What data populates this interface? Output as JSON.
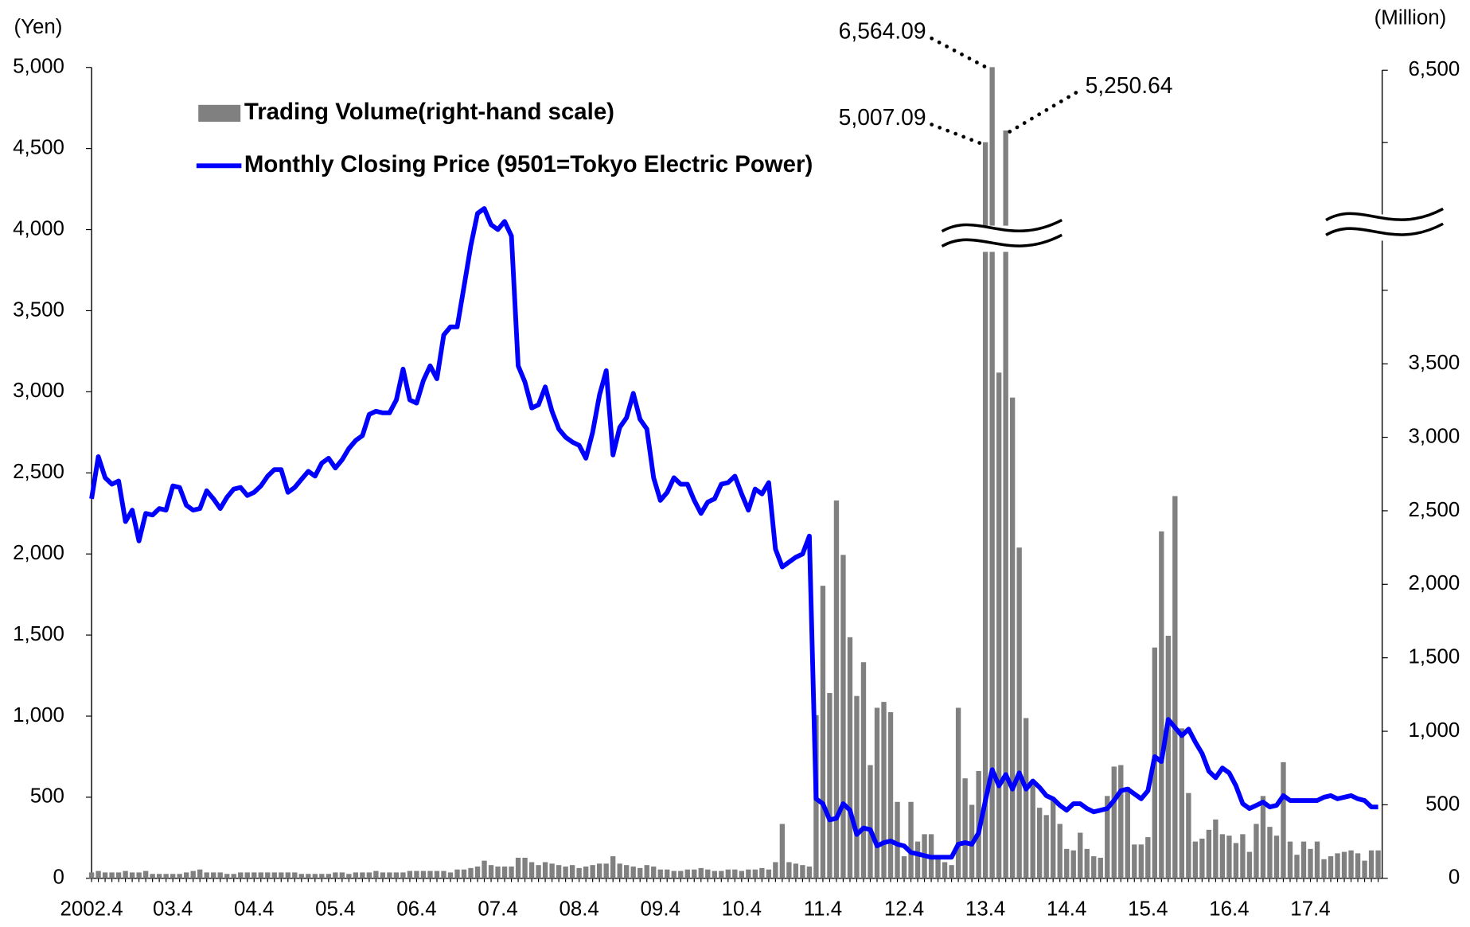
{
  "chart_data": {
    "type": "combo",
    "y_label": "(Yen)",
    "y2_label": "(Million)",
    "categories": [
      "2002.4",
      null,
      null,
      null,
      null,
      null,
      null,
      null,
      null,
      null,
      null,
      null,
      "03.4",
      null,
      null,
      null,
      null,
      null,
      null,
      null,
      null,
      null,
      null,
      null,
      "04.4",
      null,
      null,
      null,
      null,
      null,
      null,
      null,
      null,
      null,
      null,
      null,
      "05.4",
      null,
      null,
      null,
      null,
      null,
      null,
      null,
      null,
      null,
      null,
      null,
      "06.4",
      null,
      null,
      null,
      null,
      null,
      null,
      null,
      null,
      null,
      null,
      null,
      "07.4",
      null,
      null,
      null,
      null,
      null,
      null,
      null,
      null,
      null,
      null,
      null,
      "08.4",
      null,
      null,
      null,
      null,
      null,
      null,
      null,
      null,
      null,
      null,
      null,
      "09.4",
      null,
      null,
      null,
      null,
      null,
      null,
      null,
      null,
      null,
      null,
      null,
      "10.4",
      null,
      null,
      null,
      null,
      null,
      null,
      null,
      null,
      null,
      null,
      null,
      "11.4",
      null,
      null,
      null,
      null,
      null,
      null,
      null,
      null,
      null,
      null,
      null,
      "12.4",
      null,
      null,
      null,
      null,
      null,
      null,
      null,
      null,
      null,
      null,
      null,
      "13.4",
      null,
      null,
      null,
      null,
      null,
      null,
      null,
      null,
      null,
      null,
      null,
      "14.4",
      null,
      null,
      null,
      null,
      null,
      null,
      null,
      null,
      null,
      null,
      null,
      "15.4",
      null,
      null,
      null,
      null,
      null,
      null,
      null,
      null,
      null,
      null,
      null,
      "16.4",
      null,
      null,
      null,
      null,
      null,
      null,
      null,
      null,
      null,
      null,
      null,
      "17.4",
      null,
      null,
      null,
      null,
      null,
      null,
      null,
      null,
      null,
      null
    ],
    "series": [
      {
        "name": "Trading Volume(right-hand scale)",
        "type": "bar",
        "axis": "y2",
        "color": "#808080",
        "values": [
          40,
          50,
          40,
          40,
          40,
          50,
          40,
          40,
          50,
          30,
          30,
          30,
          30,
          30,
          40,
          50,
          60,
          40,
          40,
          40,
          30,
          30,
          40,
          40,
          40,
          40,
          40,
          40,
          40,
          40,
          40,
          30,
          30,
          30,
          30,
          30,
          40,
          40,
          30,
          40,
          40,
          40,
          50,
          40,
          40,
          40,
          40,
          50,
          50,
          50,
          50,
          50,
          50,
          40,
          60,
          60,
          70,
          80,
          120,
          90,
          80,
          80,
          80,
          140,
          140,
          110,
          90,
          110,
          100,
          90,
          80,
          90,
          70,
          80,
          90,
          100,
          100,
          150,
          100,
          90,
          80,
          70,
          90,
          80,
          60,
          60,
          50,
          50,
          60,
          60,
          70,
          60,
          50,
          50,
          60,
          60,
          50,
          60,
          60,
          70,
          60,
          110,
          370,
          110,
          100,
          90,
          80,
          1110,
          1990,
          1260,
          2570,
          2200,
          1640,
          1240,
          1470,
          770,
          1160,
          1200,
          1130,
          520,
          150,
          520,
          250,
          300,
          300,
          130,
          110,
          90,
          1160,
          680,
          500,
          730,
          5007.09,
          6564.09,
          3440,
          5250.64,
          3270,
          2250,
          1090,
          670,
          480,
          430,
          550,
          370,
          200,
          190,
          310,
          200,
          150,
          140,
          560,
          760,
          770,
          620,
          230,
          230,
          280,
          1570,
          2360,
          1650,
          2600,
          1020,
          580,
          250,
          270,
          330,
          400,
          300,
          290,
          240,
          300,
          180,
          370,
          560,
          350,
          290,
          790,
          250,
          160,
          250,
          200,
          250,
          130,
          150,
          170,
          180,
          190,
          170,
          120,
          190,
          190
        ],
        "value_labels": [
          null,
          null,
          null,
          null,
          null,
          null,
          null,
          null,
          null,
          null,
          null,
          null,
          null,
          null,
          null,
          null,
          null,
          null,
          null,
          null,
          null,
          null,
          null,
          null,
          null,
          null,
          null,
          null,
          null,
          null,
          null,
          null,
          null,
          null,
          null,
          null,
          null,
          null,
          null,
          null,
          null,
          null,
          null,
          null,
          null,
          null,
          null,
          null,
          null,
          null,
          null,
          null,
          null,
          null,
          null,
          null,
          null,
          null,
          null,
          null,
          null,
          null,
          null,
          null,
          null,
          null,
          null,
          null,
          null,
          null,
          null,
          null,
          null,
          null,
          null,
          null,
          null,
          null,
          null,
          null,
          null,
          null,
          null,
          null,
          null,
          null,
          null,
          null,
          null,
          null,
          null,
          null,
          null,
          null,
          null,
          null,
          null,
          null,
          null,
          null,
          null,
          null,
          null,
          null,
          null,
          null,
          null,
          null,
          null,
          null,
          null,
          null,
          null,
          null,
          null,
          null,
          null,
          null,
          null,
          null,
          null,
          null,
          null,
          null,
          null,
          null,
          null,
          null,
          null,
          null,
          null,
          null,
          "5,007.09",
          "6,564.09",
          null,
          "5,250.64",
          null,
          null,
          null,
          null,
          null,
          null,
          null,
          null,
          null,
          null,
          null,
          null,
          null,
          null,
          null,
          null,
          null,
          null,
          null,
          null,
          null,
          null,
          null,
          null,
          null,
          null,
          null,
          null,
          null,
          null,
          null,
          null,
          null,
          null,
          null,
          null,
          null,
          null,
          null,
          null,
          null,
          null,
          null,
          null,
          null,
          null,
          null,
          null,
          null,
          null,
          null,
          null,
          null,
          null,
          null
        ]
      },
      {
        "name": "Monthly Closing Price (9501=Tokyo Electric Power)",
        "type": "line",
        "axis": "y",
        "color": "#0000ff",
        "values": [
          2340,
          2600,
          2470,
          2430,
          2450,
          2200,
          2270,
          2080,
          2250,
          2240,
          2280,
          2270,
          2420,
          2410,
          2300,
          2270,
          2280,
          2390,
          2340,
          2280,
          2350,
          2400,
          2410,
          2360,
          2380,
          2420,
          2480,
          2520,
          2520,
          2380,
          2410,
          2460,
          2510,
          2480,
          2560,
          2590,
          2530,
          2580,
          2650,
          2700,
          2730,
          2860,
          2880,
          2870,
          2870,
          2950,
          3140,
          2950,
          2930,
          3070,
          3160,
          3080,
          3350,
          3400,
          3400,
          3650,
          3900,
          4100,
          4130,
          4030,
          4000,
          4050,
          3960,
          3160,
          3060,
          2900,
          2920,
          3030,
          2880,
          2770,
          2720,
          2690,
          2670,
          2590,
          2750,
          2980,
          3130,
          2610,
          2780,
          2840,
          2990,
          2830,
          2770,
          2470,
          2330,
          2380,
          2470,
          2430,
          2430,
          2330,
          2250,
          2320,
          2340,
          2430,
          2440,
          2480,
          2370,
          2270,
          2400,
          2370,
          2440,
          2030,
          1920,
          1950,
          1980,
          2000,
          2110,
          490,
          460,
          360,
          370,
          460,
          420,
          270,
          310,
          300,
          200,
          220,
          230,
          210,
          200,
          160,
          150,
          140,
          130,
          130,
          130,
          130,
          210,
          220,
          210,
          280,
          480,
          670,
          570,
          640,
          550,
          650,
          550,
          600,
          560,
          510,
          490,
          450,
          420,
          460,
          460,
          430,
          410,
          420,
          430,
          480,
          540,
          550,
          520,
          490,
          540,
          750,
          720,
          980,
          930,
          880,
          920,
          840,
          770,
          660,
          620,
          680,
          650,
          570,
          460,
          430,
          450,
          470,
          440,
          450,
          510,
          480,
          480,
          480,
          480,
          480,
          500,
          510,
          490,
          500,
          510,
          490,
          480,
          440,
          440
        ]
      }
    ],
    "ylim": [
      0,
      5000
    ],
    "yticks": [
      0,
      500,
      {
        "value": 1000,
        "label": "1,000"
      },
      {
        "value": 1500,
        "label": "1,500"
      },
      {
        "value": 2000,
        "label": "2,000"
      },
      {
        "value": 2500,
        "label": "2,500"
      },
      {
        "value": 3000,
        "label": "3,000"
      },
      {
        "value": 3500,
        "label": "3,500"
      },
      {
        "value": 4000,
        "label": "4,000"
      },
      {
        "value": 4500,
        "label": "4,500"
      },
      {
        "value": 5000,
        "label": "5,000"
      }
    ],
    "y2lim": [
      0,
      6500
    ],
    "y2break": [
      4000,
      4500
    ],
    "y2ticks": [
      0,
      500,
      {
        "value": 1000,
        "label": "1,000"
      },
      {
        "value": 1500,
        "label": "1,500"
      },
      {
        "value": 2000,
        "label": "2,000"
      },
      {
        "value": 2500,
        "label": "2,500"
      },
      {
        "value": 3000,
        "label": "3,000"
      },
      {
        "value": 3500,
        "label": "3,500"
      },
      {
        "value": 6500,
        "label": "6,500"
      }
    ],
    "y2minor_ticks": [
      4000,
      5000
    ],
    "legend": "upper left"
  }
}
